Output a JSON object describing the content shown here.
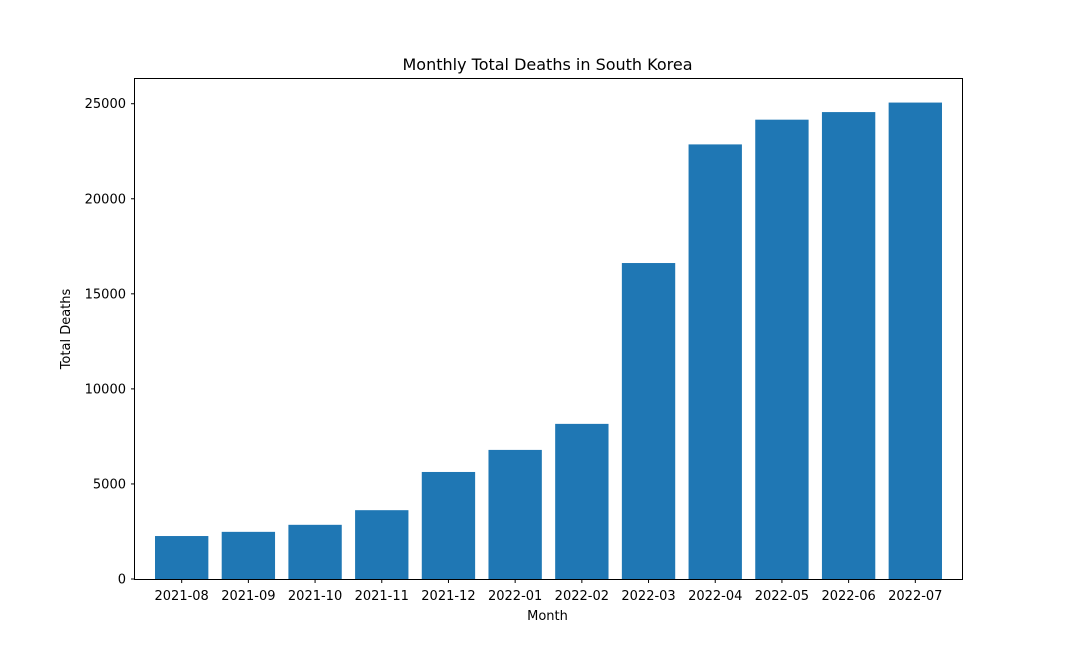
{
  "chart_data": {
    "type": "bar",
    "title": "Monthly Total Deaths in South Korea",
    "xlabel": "Month",
    "ylabel": "Total Deaths",
    "categories": [
      "2021-08",
      "2021-09",
      "2021-10",
      "2021-11",
      "2021-12",
      "2022-01",
      "2022-02",
      "2022-03",
      "2022-04",
      "2022-05",
      "2022-06",
      "2022-07"
    ],
    "values": [
      2260,
      2480,
      2850,
      3620,
      5630,
      6790,
      8160,
      16620,
      22860,
      24160,
      24560,
      25060
    ],
    "ylim": [
      0,
      26300
    ],
    "yticks": [
      0,
      5000,
      10000,
      15000,
      20000,
      25000
    ],
    "ytick_labels": [
      "0",
      "5000",
      "10000",
      "15000",
      "20000",
      "25000"
    ],
    "bar_color": "#1f77b4",
    "grid": false,
    "legend": "none"
  }
}
